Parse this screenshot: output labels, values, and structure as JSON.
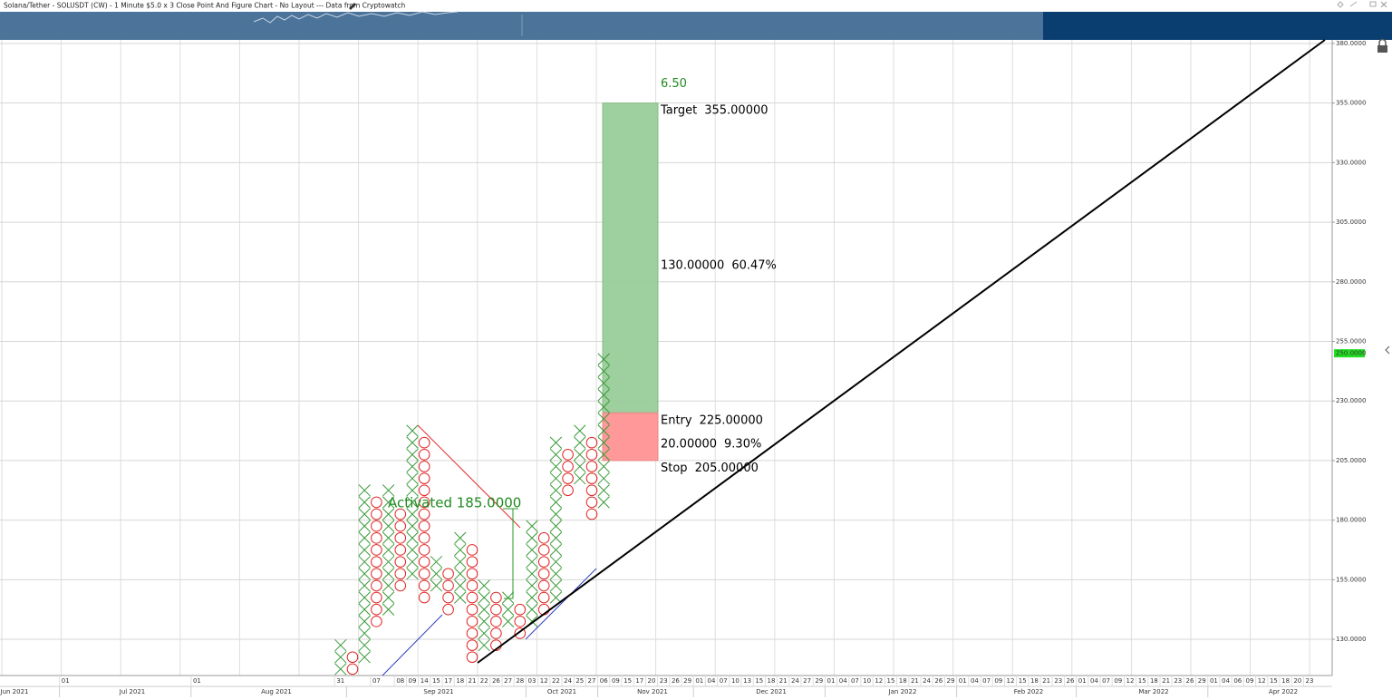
{
  "title": "Solana/Tether - SOLUSDT (CW) - 1 Minute $5.0 x 3 Close Point And Figure Chart - No Layout --- Data from Cryptowatch",
  "chart_data": {
    "type": "pointfigure",
    "box_size": 5,
    "x_color": "#3a9a3a",
    "o_color": "#e02424",
    "grid": true,
    "categories": [
      null,
      null,
      null,
      null,
      null,
      null,
      "01",
      null,
      null,
      null,
      null,
      null,
      null,
      null,
      null,
      null,
      null,
      "01",
      null,
      null,
      null,
      null,
      null,
      null,
      null,
      null,
      null,
      null,
      null,
      "31",
      null,
      null,
      "07",
      null,
      "08",
      "09",
      "14",
      "15",
      "17",
      "18",
      "21",
      "22",
      "26",
      "27",
      "28",
      "03",
      "12",
      "22",
      "24",
      "25",
      "27",
      "06",
      "09",
      "15",
      "17",
      "20",
      "23",
      "26",
      "29",
      "01",
      "04",
      "07",
      "10",
      "13",
      "15",
      "18",
      "21",
      "24",
      "27",
      "29",
      "01",
      "04",
      "07",
      "10",
      "12",
      "15",
      "18",
      "21",
      "24",
      "26",
      "29",
      "01",
      "04",
      "07",
      "09",
      "12",
      "15",
      "18",
      "21",
      "23",
      "26",
      "01",
      "04",
      "07",
      "09",
      "12",
      "15",
      "18",
      "21",
      "23",
      "26",
      "29",
      "01",
      "04",
      "06",
      "09",
      "12",
      "15",
      "18",
      "20",
      "23"
    ],
    "columns": [
      null,
      null,
      null,
      null,
      null,
      null,
      null,
      null,
      null,
      null,
      null,
      null,
      null,
      null,
      null,
      null,
      null,
      null,
      null,
      null,
      null,
      null,
      null,
      null,
      null,
      null,
      null,
      null,
      null,
      {
        "kind": "X",
        "low": 115,
        "high": 125
      },
      {
        "kind": "O",
        "low": 115,
        "high": 120
      },
      {
        "kind": "X",
        "low": 120,
        "high": 190
      },
      {
        "kind": "O",
        "low": 135,
        "high": 185
      },
      {
        "kind": "X",
        "low": 140,
        "high": 190
      },
      {
        "kind": "O",
        "low": 150,
        "high": 180
      },
      {
        "kind": "X",
        "low": 155,
        "high": 215
      },
      {
        "kind": "O",
        "low": 145,
        "high": 210
      },
      {
        "kind": "X",
        "low": 150,
        "high": 160
      },
      {
        "kind": "O",
        "low": 140,
        "high": 155
      },
      {
        "kind": "X",
        "low": 145,
        "high": 170
      },
      {
        "kind": "O",
        "low": 120,
        "high": 165
      },
      {
        "kind": "X",
        "low": 125,
        "high": 150
      },
      {
        "kind": "O",
        "low": 125,
        "high": 145
      },
      {
        "kind": "X",
        "low": 135,
        "high": 145
      },
      {
        "kind": "O",
        "low": 130,
        "high": 140
      },
      {
        "kind": "X",
        "low": 135,
        "high": 175
      },
      {
        "kind": "O",
        "low": 140,
        "high": 170
      },
      {
        "kind": "X",
        "low": 145,
        "high": 210
      },
      {
        "kind": "O",
        "low": 190,
        "high": 205
      },
      {
        "kind": "X",
        "low": 195,
        "high": 215
      },
      {
        "kind": "O",
        "low": 180,
        "high": 210
      },
      {
        "kind": "X",
        "low": 185,
        "high": 245
      },
      null,
      null,
      null,
      null,
      null,
      null,
      null,
      null,
      null,
      null,
      null,
      null,
      null,
      null,
      null,
      null,
      null,
      null,
      null,
      null,
      null,
      null,
      null,
      null,
      null,
      null,
      null,
      null,
      null,
      null,
      null,
      null,
      null,
      null,
      null,
      null,
      null,
      null,
      null,
      null,
      null,
      null,
      null,
      null,
      null,
      null,
      null,
      null,
      null,
      null,
      null,
      null,
      null,
      null,
      null,
      null,
      null,
      null,
      null
    ],
    "months": [
      "Jun 2021",
      "Jul 2021",
      "Aug 2021",
      "Sep 2021",
      "Oct 2021",
      "Nov 2021",
      "Dec 2021",
      "Jan 2022",
      "Feb 2022",
      "Mar 2022",
      "Apr 2022"
    ],
    "ylim": [
      114.8,
      381.5
    ],
    "yticks": [
      {
        "value": 130,
        "label": "130.0000"
      },
      {
        "value": 155,
        "label": "155.0000"
      },
      {
        "value": 180,
        "label": "180.0000"
      },
      {
        "value": 205,
        "label": "205.0000"
      },
      {
        "value": 230,
        "label": "230.0000"
      },
      {
        "value": 255,
        "label": "255.0000"
      },
      {
        "value": 280,
        "label": "280.0000"
      },
      {
        "value": 305,
        "label": "305.0000"
      },
      {
        "value": 330,
        "label": "330.0000"
      },
      {
        "value": 355,
        "label": "355.0000"
      },
      {
        "value": 380,
        "label": "380.0000"
      }
    ],
    "last_price": {
      "value": 250,
      "label": "250.0000",
      "color": "#22dd22"
    },
    "activated": "Activated 185.0000",
    "trade": {
      "count": "6.50",
      "reward_color": "#99cc99",
      "risk_color": "#ff9999",
      "target_name": "Target",
      "target": 355,
      "target_label": "355.00000",
      "reward": "130.00000",
      "reward_pct": "60.47%",
      "entry_name": "Entry",
      "entry": 225,
      "entry_label": "225.00000",
      "risk": "20.00000",
      "risk_pct": "9.30%",
      "stop_name": "Stop",
      "stop": 205,
      "stop_label": "205.00000"
    }
  }
}
